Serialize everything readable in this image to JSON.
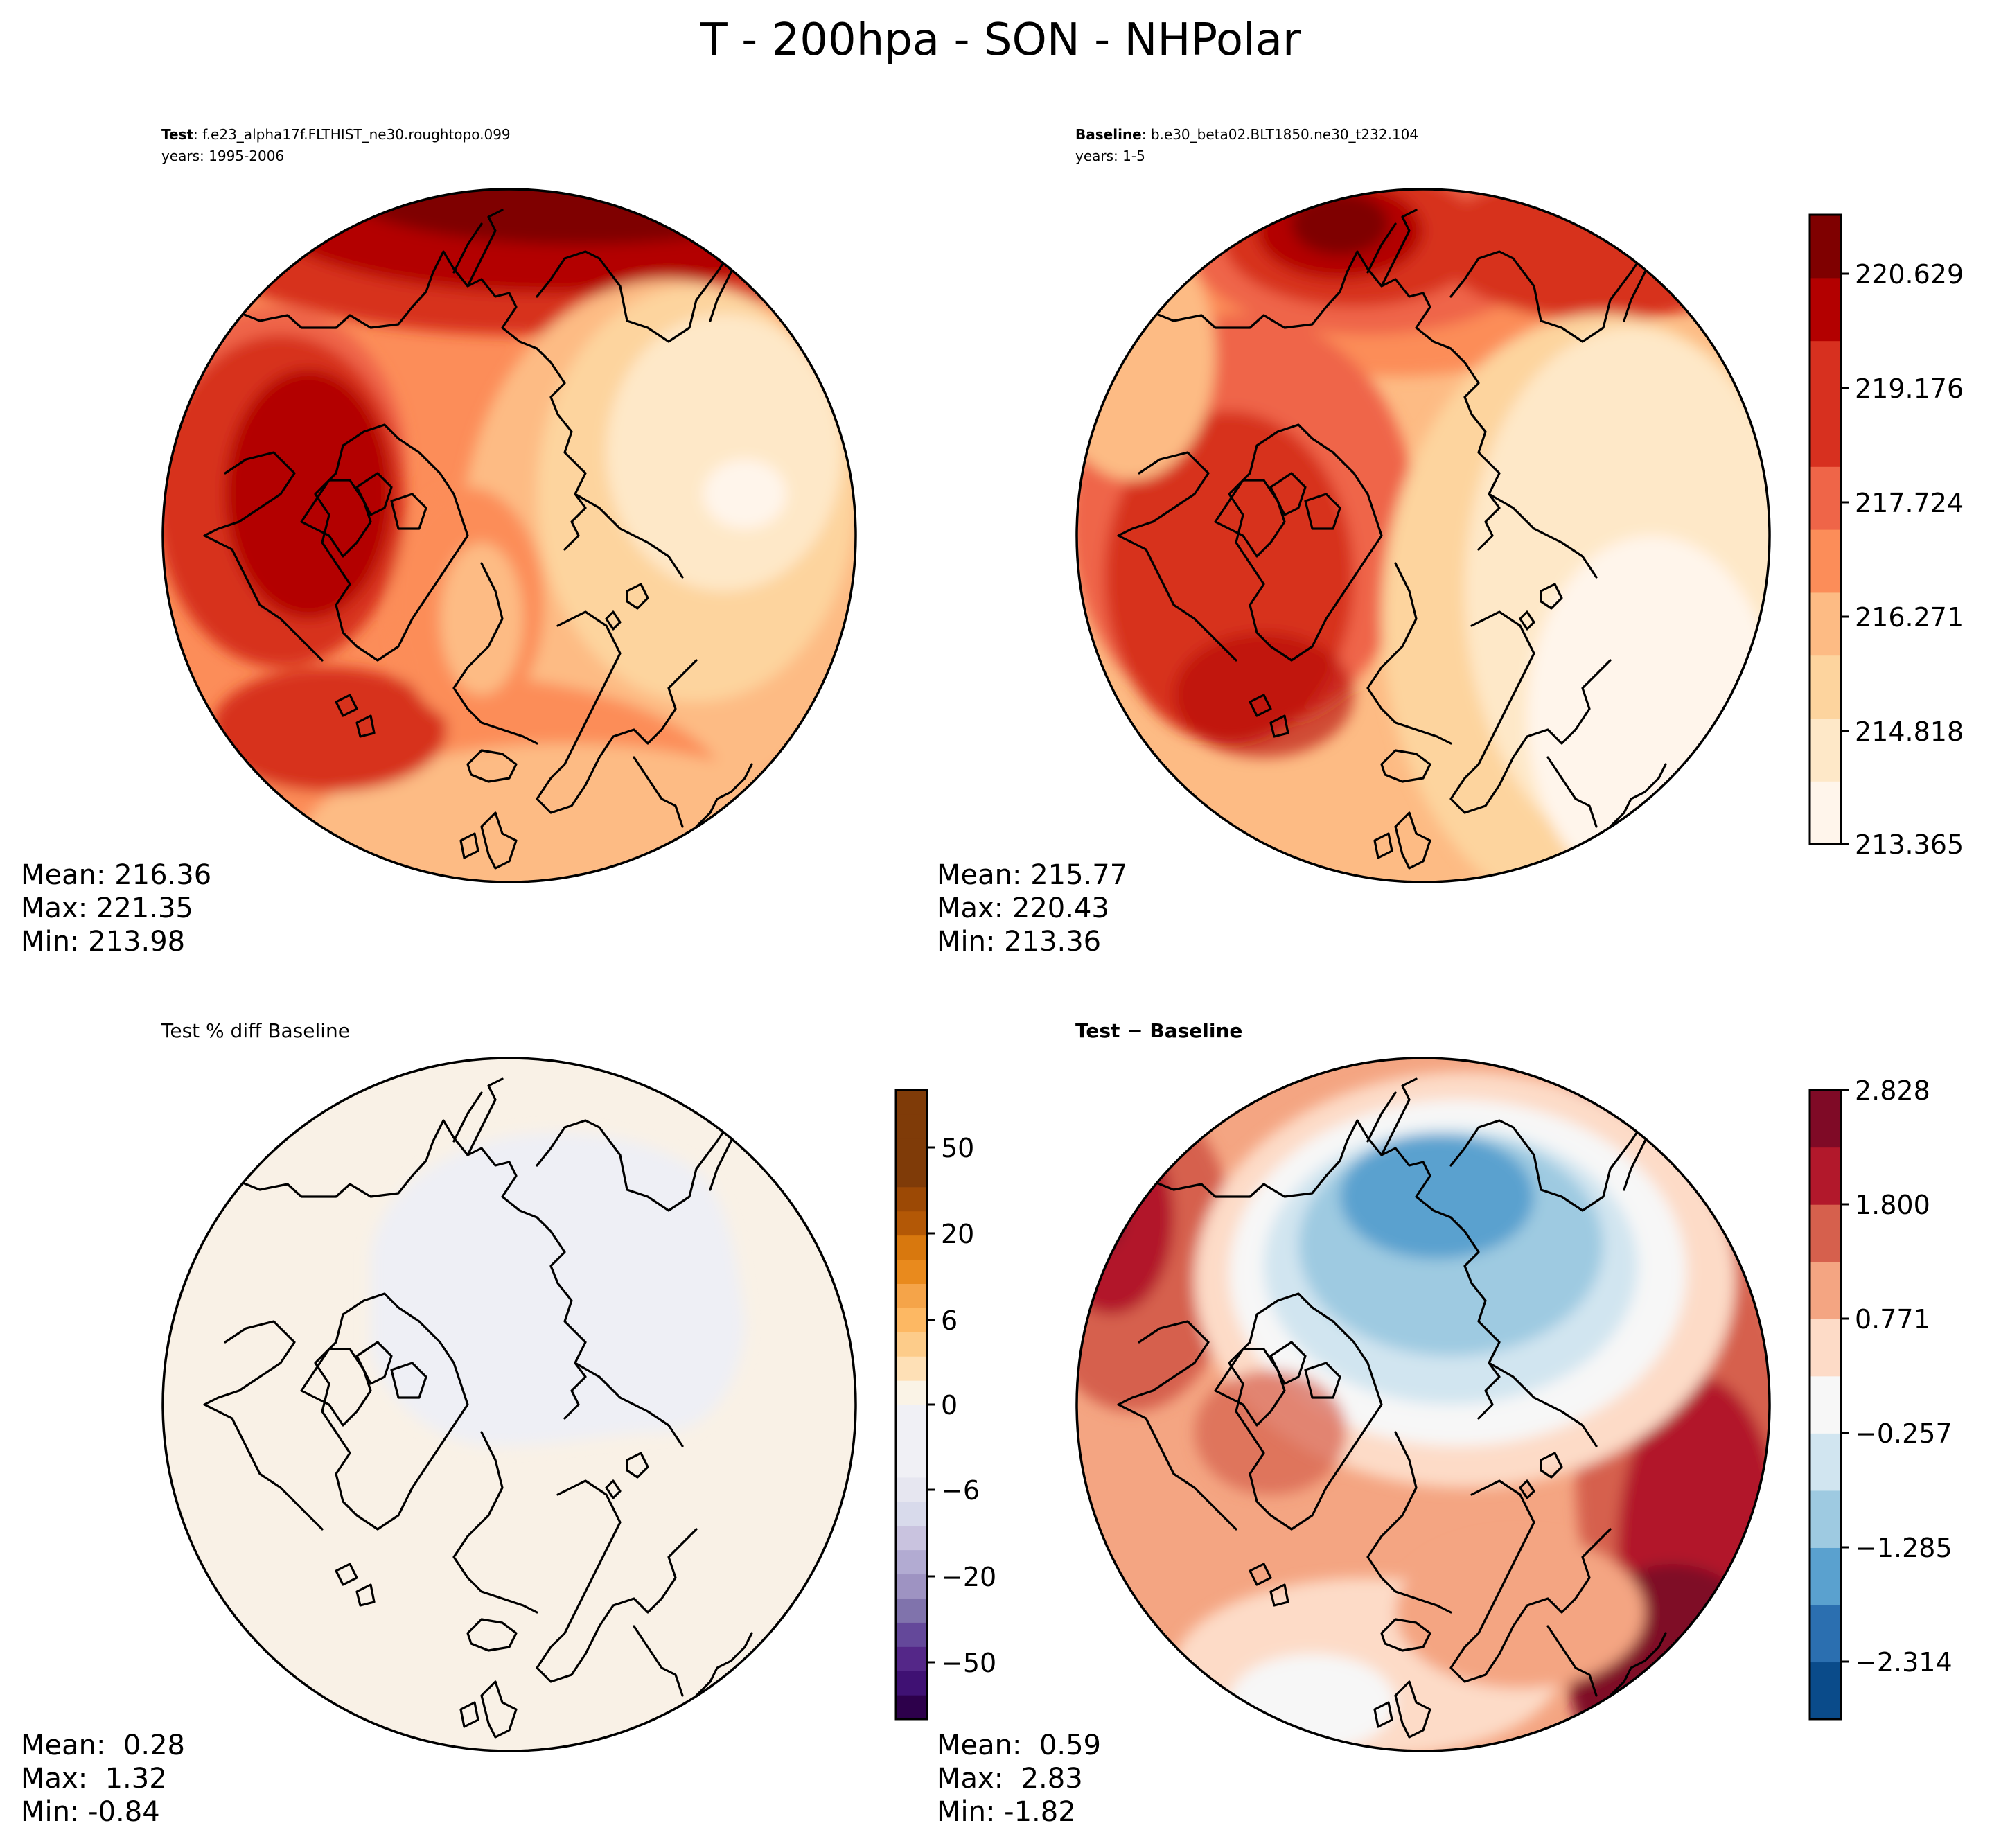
{
  "chart_data": {
    "type": "contour-map",
    "title": "T - 200hpa - SON - NHPolar",
    "projection": "North polar stereographic",
    "panels": [
      {
        "id": "test",
        "case_label": "Test",
        "case_name": ": f.e23_alpha17f.FLTHIST_ne30.roughtopo.099",
        "years": "years: 1995-2006",
        "stats": {
          "mean": "216.36",
          "max": "221.35",
          "min": "213.98"
        },
        "colormap": "OrRd",
        "colorbar": "shared with baseline"
      },
      {
        "id": "baseline",
        "case_label": "Baseline",
        "case_name": ": b.e30_beta02.BLT1850.ne30_t232.104",
        "years": "years: 1-5",
        "stats": {
          "mean": "215.77",
          "max": "220.43",
          "min": "213.36"
        },
        "colormap": "OrRd",
        "colorbar": {
          "levels": [
            213.365,
            213.91,
            214.455,
            215.0,
            215.545,
            216.09,
            216.635,
            217.18,
            217.725,
            218.27,
            218.815,
            219.36,
            219.905,
            220.45,
            220.995,
            221.54
          ],
          "tick_labels": [
            "220.629",
            "219.176",
            "217.724",
            "216.271",
            "214.818",
            "213.365"
          ]
        }
      },
      {
        "id": "pctdiff",
        "case_label": "Test % diff Baseline",
        "stats": {
          "mean": " 0.28",
          "max": " 1.32",
          "min": "-0.84"
        },
        "colormap": "PuOr_r",
        "colorbar": {
          "levels": [
            -100,
            -75,
            -50,
            -40,
            -30,
            -20,
            -15,
            -10,
            -8,
            -6,
            -4,
            -2,
            -1,
            0,
            1,
            2,
            4,
            6,
            8,
            10,
            15,
            20,
            30,
            40,
            50,
            75,
            100
          ],
          "tick_labels": [
            "50",
            "20",
            "6",
            "0",
            "−6",
            "−20",
            "−50"
          ]
        }
      },
      {
        "id": "diff",
        "case_label": "Test − Baseline",
        "stats": {
          "mean": " 0.59",
          "max": " 2.83",
          "min": "-1.82"
        },
        "colormap": "RdBu_r",
        "colorbar": {
          "levels": [
            -2.828,
            -2.314,
            -1.8,
            -1.285,
            -0.771,
            -0.257,
            0.257,
            0.771,
            1.285,
            1.8,
            2.314,
            2.828
          ],
          "tick_labels": [
            "2.828",
            "1.800",
            "0.771",
            "−0.257",
            "−1.285",
            "−2.314"
          ]
        }
      }
    ]
  },
  "labels": {
    "mean": "Mean: ",
    "max": "Max: ",
    "min": "Min: "
  },
  "colors": {
    "orrd": [
      "#fff5eb",
      "#fee8c8",
      "#fdd49e",
      "#fdbb84",
      "#fc8d59",
      "#ef6548",
      "#d7301f",
      "#b30000",
      "#7f0000"
    ],
    "rdbu": [
      "#0a4b8a",
      "#2b6fb0",
      "#5aa1cf",
      "#9ecae1",
      "#d1e5f0",
      "#f7f7f7",
      "#fddbc7",
      "#f4a582",
      "#d6604d",
      "#b2182b",
      "#7f0a26"
    ],
    "puor_neg": [
      "#2d004b",
      "#3f1173",
      "#542788",
      "#64489a",
      "#8073ac",
      "#9e93c2",
      "#b2abd2",
      "#c9c3df",
      "#d8daeb",
      "#e6e6f0",
      "#f0f0f5"
    ],
    "puor_pos": [
      "#faf3e6",
      "#fee0b6",
      "#fdcc8a",
      "#fdb863",
      "#f5a449",
      "#e98a1d",
      "#d8780e",
      "#b35806",
      "#9c4905",
      "#7f3b08"
    ]
  }
}
